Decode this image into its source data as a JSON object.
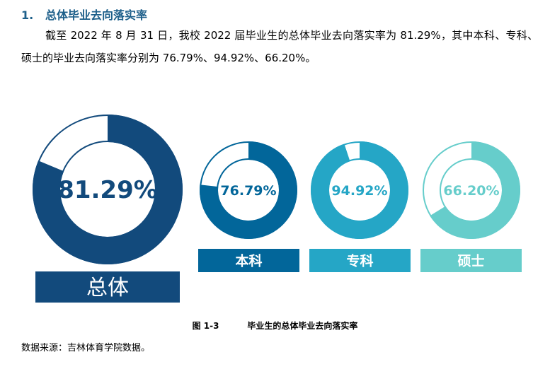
{
  "heading": {
    "number": "1.",
    "title": "总体毕业去向落实率"
  },
  "paragraph": "截至 2022 年 8 月 31 日，我校 2022 届毕业生的总体毕业去向落实率为 81.29%，其中本科、专科、硕士的毕业去向落实率分别为 76.79%、94.92%、66.20%。",
  "chart_data": {
    "type": "pie",
    "subtype": "donut",
    "unit": "%",
    "items": [
      {
        "label": "总体",
        "value": 81.29,
        "value_label": "81.29%",
        "color": "#124a7c"
      },
      {
        "label": "本科",
        "value": 76.79,
        "value_label": "76.79%",
        "color": "#02669a"
      },
      {
        "label": "专科",
        "value": 94.92,
        "value_label": "94.92%",
        "color": "#25a6c6"
      },
      {
        "label": "硕士",
        "value": 66.2,
        "value_label": "66.20%",
        "color": "#66cdcb"
      }
    ]
  },
  "caption": {
    "number": "图 1-3",
    "title": "毕业生的总体毕业去向落实率"
  },
  "source": "数据来源：吉林体育学院数据。"
}
